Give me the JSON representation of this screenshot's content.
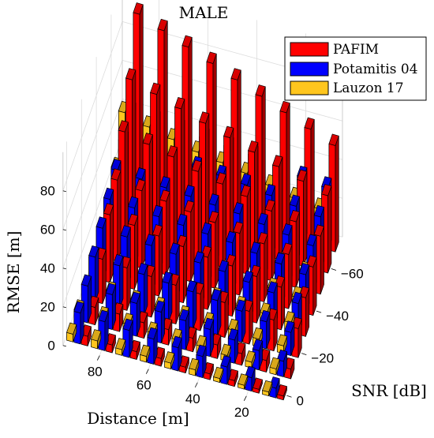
{
  "chart_data": {
    "type": "bar",
    "title": "MALE",
    "xlabel": "Distance [m]",
    "ylabel": "SNR [dB]",
    "zlabel": "RMSE [m]",
    "x_ticks": [
      20,
      40,
      60,
      80
    ],
    "y_ticks": [
      0,
      -20,
      -40,
      -60
    ],
    "z_ticks": [
      0,
      20,
      40,
      60,
      80
    ],
    "zlim": [
      0,
      100
    ],
    "distance": [
      10,
      20,
      30,
      40,
      50,
      60,
      70,
      80,
      90
    ],
    "snr": [
      0,
      -10,
      -20,
      -30,
      -40,
      -50,
      -60,
      -70
    ],
    "grid": true,
    "legend_position": "top-right",
    "series": [
      {
        "name": "PAFIM",
        "color": "#ff0000",
        "values": [
          [
            2,
            5,
            15,
            20,
            25,
            30,
            40,
            55
          ],
          [
            2,
            6,
            16,
            22,
            28,
            34,
            44,
            60
          ],
          [
            3,
            6,
            17,
            24,
            30,
            36,
            48,
            65
          ],
          [
            3,
            7,
            18,
            26,
            32,
            40,
            52,
            70
          ],
          [
            3,
            7,
            19,
            27,
            34,
            43,
            56,
            75
          ],
          [
            4,
            8,
            20,
            29,
            36,
            46,
            60,
            80
          ],
          [
            4,
            8,
            21,
            31,
            38,
            50,
            64,
            85
          ],
          [
            4,
            9,
            22,
            33,
            40,
            53,
            68,
            90
          ],
          [
            5,
            9,
            23,
            35,
            42,
            56,
            72,
            95
          ]
        ]
      },
      {
        "name": "Potamitis 04",
        "color": "#0000ff",
        "values": [
          [
            5,
            8,
            12,
            16,
            20,
            24,
            28,
            32
          ],
          [
            7,
            10,
            14,
            18,
            22,
            26,
            30,
            34
          ],
          [
            9,
            12,
            16,
            20,
            24,
            28,
            32,
            36
          ],
          [
            11,
            14,
            18,
            22,
            26,
            30,
            34,
            38
          ],
          [
            12,
            15,
            19,
            23,
            27,
            31,
            35,
            39
          ],
          [
            13,
            16,
            20,
            24,
            28,
            32,
            36,
            40
          ],
          [
            14,
            17,
            21,
            25,
            29,
            33,
            37,
            41
          ],
          [
            15,
            18,
            22,
            26,
            30,
            34,
            38,
            42
          ],
          [
            16,
            19,
            23,
            27,
            31,
            35,
            39,
            43
          ]
        ]
      },
      {
        "name": "Lauzon 17",
        "color": "#ffc61e",
        "values": [
          [
            2,
            3,
            4,
            5,
            7,
            9,
            12,
            20
          ],
          [
            2,
            3,
            4,
            6,
            8,
            10,
            13,
            22
          ],
          [
            2,
            3,
            5,
            6,
            8,
            11,
            14,
            25
          ],
          [
            3,
            4,
            5,
            7,
            9,
            12,
            16,
            28
          ],
          [
            3,
            4,
            5,
            7,
            10,
            13,
            17,
            30
          ],
          [
            3,
            4,
            6,
            8,
            11,
            14,
            18,
            32
          ],
          [
            3,
            5,
            6,
            8,
            11,
            15,
            20,
            35
          ],
          [
            4,
            5,
            7,
            9,
            12,
            16,
            22,
            38
          ],
          [
            4,
            5,
            7,
            10,
            13,
            17,
            24,
            42
          ]
        ]
      }
    ]
  }
}
